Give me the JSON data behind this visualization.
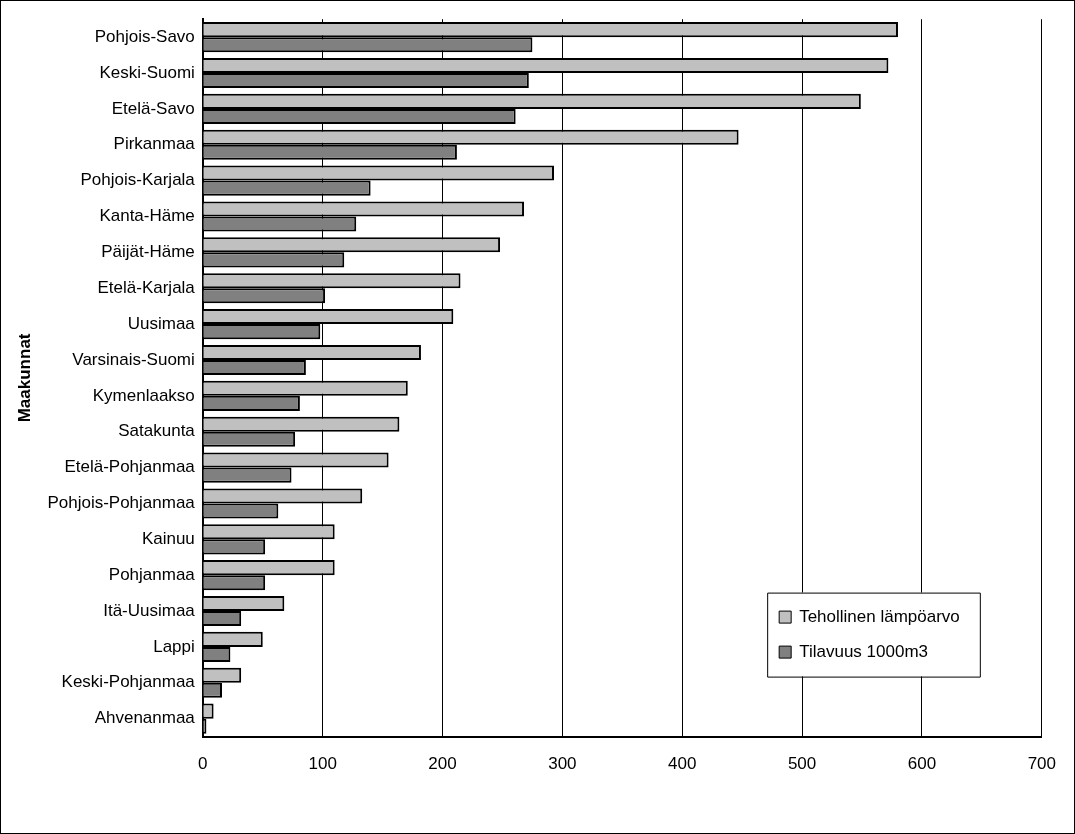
{
  "chart_data": {
    "type": "bar",
    "orientation": "horizontal",
    "ylabel": "Maakunnat",
    "categories": [
      "Pohjois-Savo",
      "Keski-Suomi",
      "Etelä-Savo",
      "Pirkanmaa",
      "Pohjois-Karjala",
      "Kanta-Häme",
      "Päijät-Häme",
      "Etelä-Karjala",
      "Uusimaa",
      "Varsinais-Suomi",
      "Kymenlaakso",
      "Satakunta",
      "Etelä-Pohjanmaa",
      "Pohjois-Pohjanmaa",
      "Kainuu",
      "Pohjanmaa",
      "Itä-Uusimaa",
      "Lappi",
      "Keski-Pohjanmaa",
      "Ahvenanmaa"
    ],
    "series": [
      {
        "name": "Tehollinen lämpöarvo",
        "color": "#c0c0c0",
        "values": [
          580,
          572,
          549,
          447,
          293,
          268,
          248,
          215,
          209,
          182,
          171,
          164,
          155,
          133,
          110,
          110,
          68,
          50,
          32,
          9
        ]
      },
      {
        "name": "Tilavuus 1000m3",
        "color": "#808080",
        "values": [
          275,
          272,
          261,
          212,
          140,
          128,
          118,
          102,
          98,
          86,
          81,
          77,
          74,
          63,
          52,
          52,
          32,
          23,
          16,
          3
        ]
      }
    ],
    "xlim": [
      0,
      700
    ],
    "xticks": [
      0,
      100,
      200,
      300,
      400,
      500,
      600,
      700
    ],
    "grid": "x",
    "legend": "bottom right"
  }
}
